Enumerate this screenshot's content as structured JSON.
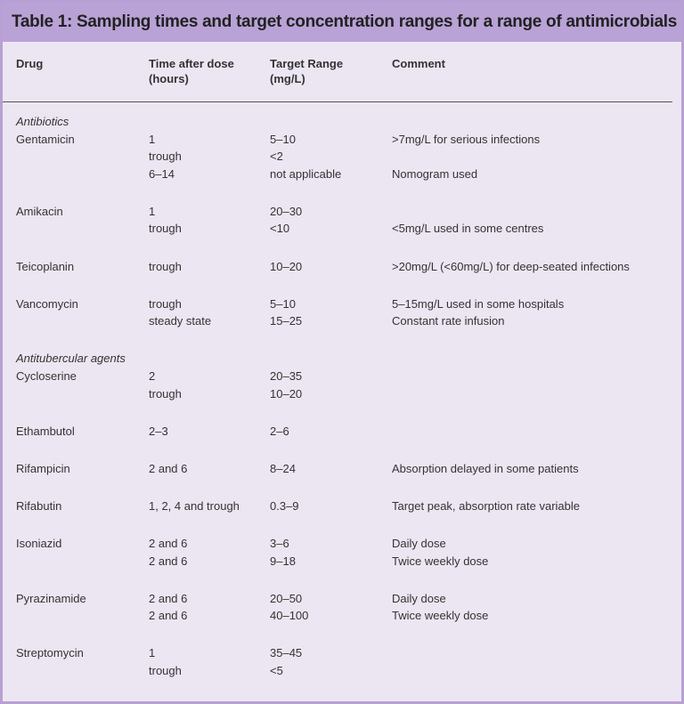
{
  "title": "Table 1: Sampling times and target concentration ranges for a range of antimicrobials",
  "table": {
    "headers": [
      [
        "Drug"
      ],
      [
        "Time after dose",
        "(hours)"
      ],
      [
        "Target Range",
        "(mg/L)"
      ],
      [
        "Comment"
      ]
    ],
    "sections": [
      {
        "label": "Antibiotics",
        "drugs": [
          {
            "name": "Gentamicin",
            "rows": [
              [
                "1",
                "5–10",
                ">7mg/L for serious infections"
              ],
              [
                "trough",
                "<2",
                null
              ],
              [
                "6–14",
                "not applicable",
                "Nomogram used"
              ]
            ]
          },
          {
            "name": "Amikacin",
            "rows": [
              [
                "1",
                "20–30",
                null
              ],
              [
                "trough",
                "<10",
                "<5mg/L used in some centres"
              ]
            ]
          },
          {
            "name": "Teicoplanin",
            "rows": [
              [
                "trough",
                "10–20",
                ">20mg/L (<60mg/L) for deep-seated infections"
              ]
            ]
          },
          {
            "name": "Vancomycin",
            "rows": [
              [
                "trough",
                "5–10",
                "5–15mg/L used in some hospitals"
              ],
              [
                "steady state",
                "15–25",
                "Constant rate infusion"
              ]
            ]
          }
        ]
      },
      {
        "label": "Antitubercular agents",
        "drugs": [
          {
            "name": "Cycloserine",
            "rows": [
              [
                "2",
                "20–35",
                null
              ],
              [
                "trough",
                "10–20",
                null
              ]
            ]
          },
          {
            "name": "Ethambutol",
            "rows": [
              [
                "2–3",
                "2–6",
                null
              ]
            ]
          },
          {
            "name": "Rifampicin",
            "rows": [
              [
                "2 and 6",
                "8–24",
                "Absorption delayed in some patients"
              ]
            ]
          },
          {
            "name": "Rifabutin",
            "rows": [
              [
                "1, 2, 4 and trough",
                "0.3–9",
                "Target peak, absorption rate variable"
              ]
            ]
          },
          {
            "name": "Isoniazid",
            "rows": [
              [
                "2 and 6",
                "3–6",
                "Daily dose"
              ],
              [
                "2 and 6",
                "9–18",
                "Twice weekly dose"
              ]
            ]
          },
          {
            "name": "Pyrazinamide",
            "rows": [
              [
                "2 and 6",
                "20–50",
                "Daily dose"
              ],
              [
                "2 and 6",
                "40–100",
                "Twice weekly dose"
              ]
            ]
          },
          {
            "name": "Streptomycin",
            "rows": [
              [
                "1",
                "35–45",
                null
              ],
              [
                "trough",
                "<5",
                null
              ]
            ]
          }
        ]
      }
    ]
  }
}
